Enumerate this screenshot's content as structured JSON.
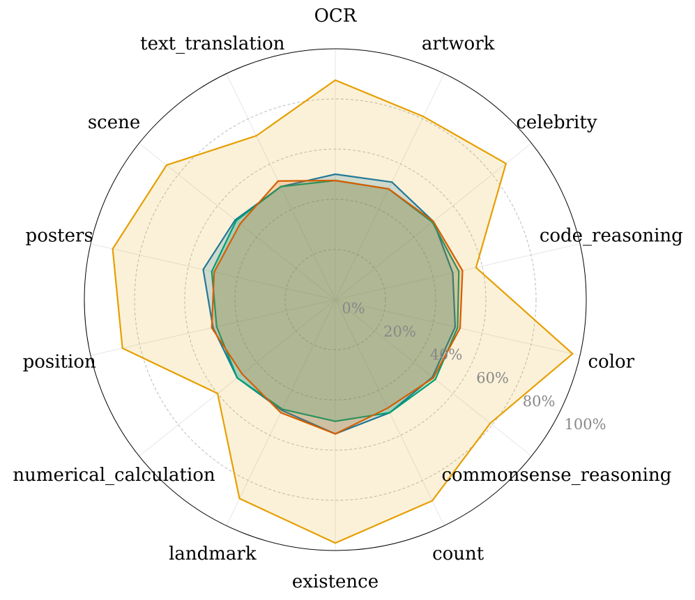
{
  "chart_data": {
    "type": "radar",
    "categories": [
      "OCR",
      "artwork",
      "celebrity",
      "code_reasoning",
      "color",
      "commonsense_reasoning",
      "count",
      "existence",
      "landmark",
      "numerical_calculation",
      "position",
      "posters",
      "scene",
      "text_translation"
    ],
    "series": [
      {
        "color": "#0072b2",
        "values": [
          50,
          52,
          50,
          48,
          49,
          49.5,
          50,
          53.5,
          49,
          50,
          50,
          54,
          51,
          50
        ]
      },
      {
        "color": "#e69f00",
        "values": [
          87.5,
          81,
          87,
          57.5,
          97,
          79,
          89,
          97,
          88,
          60,
          87,
          91,
          86,
          72.5
        ]
      },
      {
        "color": "#009e73",
        "values": [
          47.5,
          49,
          49.5,
          50.5,
          50,
          51,
          50,
          48.5,
          48.5,
          50,
          48.5,
          50.5,
          50.5,
          50
        ]
      },
      {
        "color": "#d55e00",
        "values": [
          47.5,
          49,
          50,
          52,
          51,
          50,
          48,
          53.5,
          50,
          47.5,
          50.5,
          49.5,
          48.5,
          52.5
        ]
      }
    ],
    "ylim": [
      0,
      100
    ],
    "yticks": [
      {
        "value": 0,
        "label": "0%"
      },
      {
        "value": 20,
        "label": "20%"
      },
      {
        "value": 40,
        "label": "40%"
      },
      {
        "value": 60,
        "label": "60%"
      },
      {
        "value": 80,
        "label": "80%"
      },
      {
        "value": 100,
        "label": "100%"
      }
    ],
    "grid": true
  }
}
